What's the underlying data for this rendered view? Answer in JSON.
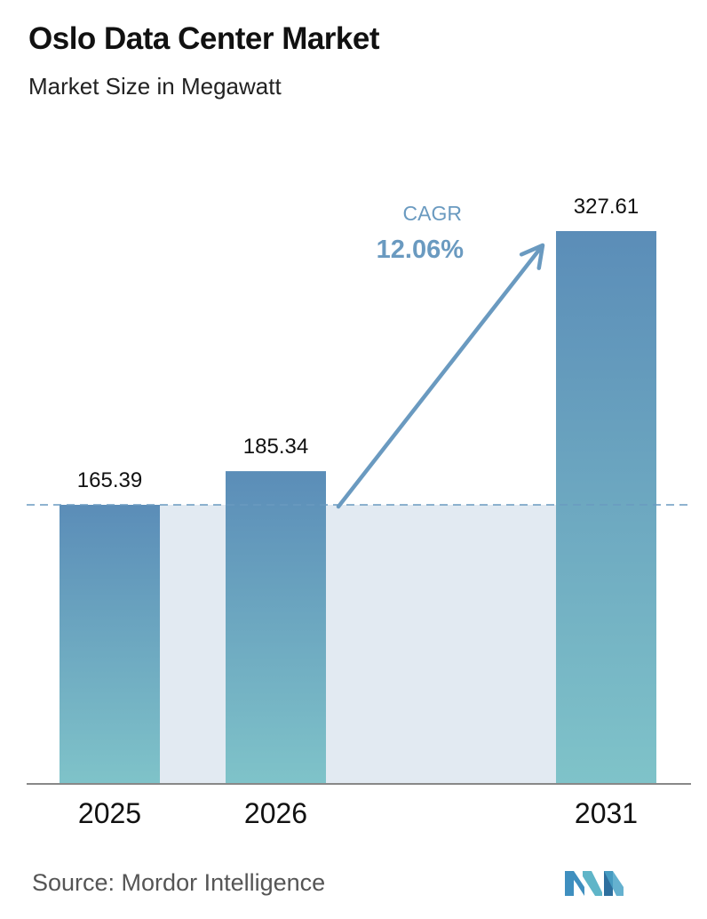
{
  "title": "Oslo Data Center Market",
  "subtitle": "Market Size in Megawatt",
  "source": "Source:  Mordor Intelligence",
  "colors": {
    "bar_top": "#5b8db8",
    "bar_bottom": "#7fc3c9",
    "band": "#e2eaf2",
    "accent": "#6a9ac0",
    "axis": "#888888",
    "text": "#111111"
  },
  "annotation": {
    "cagr_label": "CAGR",
    "cagr_value": "12.06%"
  },
  "chart_data": {
    "type": "bar",
    "title": "Oslo Data Center Market",
    "subtitle": "Market Size in Megawatt",
    "categories": [
      "2025",
      "2026",
      "2031"
    ],
    "values": [
      165.39,
      185.34,
      327.61
    ],
    "value_labels": [
      "165.39",
      "185.34",
      "327.61"
    ],
    "ylim": [
      0,
      327.61
    ],
    "grid": false,
    "baseline_reference": 165.39,
    "annotation": "CAGR 12.06%"
  }
}
